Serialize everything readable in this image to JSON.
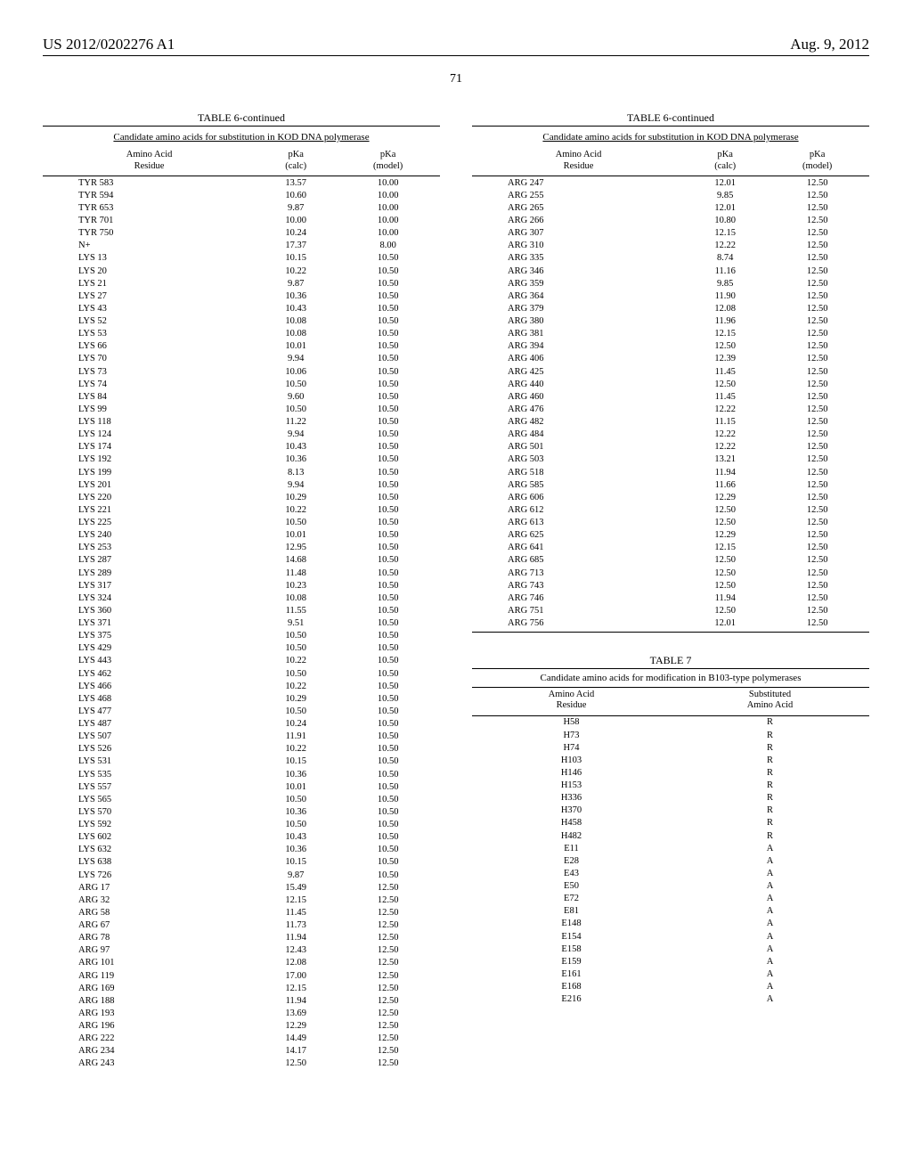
{
  "header": {
    "doc_id": "US 2012/0202276 A1",
    "date": "Aug. 9, 2012",
    "page_num": "71"
  },
  "table6": {
    "title": "TABLE 6-continued",
    "caption": "Candidate amino acids for substitution in KOD DNA polymerase",
    "headers": [
      "Amino Acid\nResidue",
      "pKa\n(calc)",
      "pKa\n(model)"
    ],
    "rows_left": [
      [
        "TYR 583",
        "13.57",
        "10.00"
      ],
      [
        "TYR 594",
        "10.60",
        "10.00"
      ],
      [
        "TYR 653",
        "9.87",
        "10.00"
      ],
      [
        "TYR 701",
        "10.00",
        "10.00"
      ],
      [
        "TYR 750",
        "10.24",
        "10.00"
      ],
      [
        "N+",
        "17.37",
        "8.00"
      ],
      [
        "LYS 13",
        "10.15",
        "10.50"
      ],
      [
        "LYS 20",
        "10.22",
        "10.50"
      ],
      [
        "LYS 21",
        "9.87",
        "10.50"
      ],
      [
        "LYS 27",
        "10.36",
        "10.50"
      ],
      [
        "LYS 43",
        "10.43",
        "10.50"
      ],
      [
        "LYS 52",
        "10.08",
        "10.50"
      ],
      [
        "LYS 53",
        "10.08",
        "10.50"
      ],
      [
        "LYS 66",
        "10.01",
        "10.50"
      ],
      [
        "LYS 70",
        "9.94",
        "10.50"
      ],
      [
        "LYS 73",
        "10.06",
        "10.50"
      ],
      [
        "LYS 74",
        "10.50",
        "10.50"
      ],
      [
        "LYS 84",
        "9.60",
        "10.50"
      ],
      [
        "LYS 99",
        "10.50",
        "10.50"
      ],
      [
        "LYS 118",
        "11.22",
        "10.50"
      ],
      [
        "LYS 124",
        "9.94",
        "10.50"
      ],
      [
        "LYS 174",
        "10.43",
        "10.50"
      ],
      [
        "LYS 192",
        "10.36",
        "10.50"
      ],
      [
        "LYS 199",
        "8.13",
        "10.50"
      ],
      [
        "LYS 201",
        "9.94",
        "10.50"
      ],
      [
        "LYS 220",
        "10.29",
        "10.50"
      ],
      [
        "LYS 221",
        "10.22",
        "10.50"
      ],
      [
        "LYS 225",
        "10.50",
        "10.50"
      ],
      [
        "LYS 240",
        "10.01",
        "10.50"
      ],
      [
        "LYS 253",
        "12.95",
        "10.50"
      ],
      [
        "LYS 287",
        "14.68",
        "10.50"
      ],
      [
        "LYS 289",
        "11.48",
        "10.50"
      ],
      [
        "LYS 317",
        "10.23",
        "10.50"
      ],
      [
        "LYS 324",
        "10.08",
        "10.50"
      ],
      [
        "LYS 360",
        "11.55",
        "10.50"
      ],
      [
        "LYS 371",
        "9.51",
        "10.50"
      ],
      [
        "LYS 375",
        "10.50",
        "10.50"
      ],
      [
        "LYS 429",
        "10.50",
        "10.50"
      ],
      [
        "LYS 443",
        "10.22",
        "10.50"
      ],
      [
        "LYS 462",
        "10.50",
        "10.50"
      ],
      [
        "LYS 466",
        "10.22",
        "10.50"
      ],
      [
        "LYS 468",
        "10.29",
        "10.50"
      ],
      [
        "LYS 477",
        "10.50",
        "10.50"
      ],
      [
        "LYS 487",
        "10.24",
        "10.50"
      ],
      [
        "LYS 507",
        "11.91",
        "10.50"
      ],
      [
        "LYS 526",
        "10.22",
        "10.50"
      ],
      [
        "LYS 531",
        "10.15",
        "10.50"
      ],
      [
        "LYS 535",
        "10.36",
        "10.50"
      ],
      [
        "LYS 557",
        "10.01",
        "10.50"
      ],
      [
        "LYS 565",
        "10.50",
        "10.50"
      ],
      [
        "LYS 570",
        "10.36",
        "10.50"
      ],
      [
        "LYS 592",
        "10.50",
        "10.50"
      ],
      [
        "LYS 602",
        "10.43",
        "10.50"
      ],
      [
        "LYS 632",
        "10.36",
        "10.50"
      ],
      [
        "LYS 638",
        "10.15",
        "10.50"
      ],
      [
        "LYS 726",
        "9.87",
        "10.50"
      ],
      [
        "ARG 17",
        "15.49",
        "12.50"
      ],
      [
        "ARG 32",
        "12.15",
        "12.50"
      ],
      [
        "ARG 58",
        "11.45",
        "12.50"
      ],
      [
        "ARG 67",
        "11.73",
        "12.50"
      ],
      [
        "ARG 78",
        "11.94",
        "12.50"
      ],
      [
        "ARG 97",
        "12.43",
        "12.50"
      ],
      [
        "ARG 101",
        "12.08",
        "12.50"
      ],
      [
        "ARG 119",
        "17.00",
        "12.50"
      ],
      [
        "ARG 169",
        "12.15",
        "12.50"
      ],
      [
        "ARG 188",
        "11.94",
        "12.50"
      ],
      [
        "ARG 193",
        "13.69",
        "12.50"
      ],
      [
        "ARG 196",
        "12.29",
        "12.50"
      ],
      [
        "ARG 222",
        "14.49",
        "12.50"
      ],
      [
        "ARG 234",
        "14.17",
        "12.50"
      ],
      [
        "ARG 243",
        "12.50",
        "12.50"
      ]
    ],
    "rows_right": [
      [
        "ARG 247",
        "12.01",
        "12.50"
      ],
      [
        "ARG 255",
        "9.85",
        "12.50"
      ],
      [
        "ARG 265",
        "12.01",
        "12.50"
      ],
      [
        "ARG 266",
        "10.80",
        "12.50"
      ],
      [
        "ARG 307",
        "12.15",
        "12.50"
      ],
      [
        "ARG 310",
        "12.22",
        "12.50"
      ],
      [
        "ARG 335",
        "8.74",
        "12.50"
      ],
      [
        "ARG 346",
        "11.16",
        "12.50"
      ],
      [
        "ARG 359",
        "9.85",
        "12.50"
      ],
      [
        "ARG 364",
        "11.90",
        "12.50"
      ],
      [
        "ARG 379",
        "12.08",
        "12.50"
      ],
      [
        "ARG 380",
        "11.96",
        "12.50"
      ],
      [
        "ARG 381",
        "12.15",
        "12.50"
      ],
      [
        "ARG 394",
        "12.50",
        "12.50"
      ],
      [
        "ARG 406",
        "12.39",
        "12.50"
      ],
      [
        "ARG 425",
        "11.45",
        "12.50"
      ],
      [
        "ARG 440",
        "12.50",
        "12.50"
      ],
      [
        "ARG 460",
        "11.45",
        "12.50"
      ],
      [
        "ARG 476",
        "12.22",
        "12.50"
      ],
      [
        "ARG 482",
        "11.15",
        "12.50"
      ],
      [
        "ARG 484",
        "12.22",
        "12.50"
      ],
      [
        "ARG 501",
        "12.22",
        "12.50"
      ],
      [
        "ARG 503",
        "13.21",
        "12.50"
      ],
      [
        "ARG 518",
        "11.94",
        "12.50"
      ],
      [
        "ARG 585",
        "11.66",
        "12.50"
      ],
      [
        "ARG 606",
        "12.29",
        "12.50"
      ],
      [
        "ARG 612",
        "12.50",
        "12.50"
      ],
      [
        "ARG 613",
        "12.50",
        "12.50"
      ],
      [
        "ARG 625",
        "12.29",
        "12.50"
      ],
      [
        "ARG 641",
        "12.15",
        "12.50"
      ],
      [
        "ARG 685",
        "12.50",
        "12.50"
      ],
      [
        "ARG 713",
        "12.50",
        "12.50"
      ],
      [
        "ARG 743",
        "12.50",
        "12.50"
      ],
      [
        "ARG 746",
        "11.94",
        "12.50"
      ],
      [
        "ARG 751",
        "12.50",
        "12.50"
      ],
      [
        "ARG 756",
        "12.01",
        "12.50"
      ]
    ]
  },
  "table7": {
    "title": "TABLE 7",
    "caption": "Candidate amino acids for modification in B103-type polymerases",
    "headers": [
      "Amino Acid\nResidue",
      "Substituted\nAmino Acid"
    ],
    "rows": [
      [
        "H58",
        "R"
      ],
      [
        "H73",
        "R"
      ],
      [
        "H74",
        "R"
      ],
      [
        "H103",
        "R"
      ],
      [
        "H146",
        "R"
      ],
      [
        "H153",
        "R"
      ],
      [
        "H336",
        "R"
      ],
      [
        "H370",
        "R"
      ],
      [
        "H458",
        "R"
      ],
      [
        "H482",
        "R"
      ],
      [
        "E11",
        "A"
      ],
      [
        "E28",
        "A"
      ],
      [
        "E43",
        "A"
      ],
      [
        "E50",
        "A"
      ],
      [
        "E72",
        "A"
      ],
      [
        "E81",
        "A"
      ],
      [
        "E148",
        "A"
      ],
      [
        "E154",
        "A"
      ],
      [
        "E158",
        "A"
      ],
      [
        "E159",
        "A"
      ],
      [
        "E161",
        "A"
      ],
      [
        "E168",
        "A"
      ],
      [
        "E216",
        "A"
      ]
    ]
  }
}
